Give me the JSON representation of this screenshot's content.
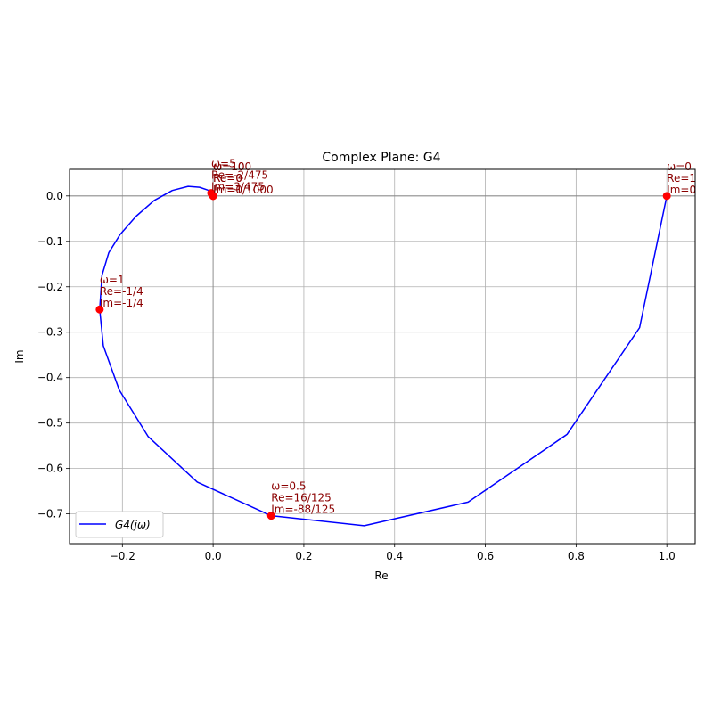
{
  "chart_data": {
    "type": "line",
    "title": "Complex Plane: G4",
    "xlabel": "Re",
    "ylabel": "Im",
    "xlim": [
      -0.3165,
      1.0625
    ],
    "ylim": [
      -0.7655,
      0.0585
    ],
    "xticks": [
      -0.2,
      0.0,
      0.2,
      0.4,
      0.6,
      0.8,
      1.0
    ],
    "xtick_labels": [
      "−0.2",
      "0.0",
      "0.2",
      "0.4",
      "0.6",
      "0.8",
      "1.0"
    ],
    "yticks": [
      0.0,
      -0.1,
      -0.2,
      -0.3,
      -0.4,
      -0.5,
      -0.6,
      -0.7
    ],
    "ytick_labels": [
      "0.0",
      "−0.1",
      "−0.2",
      "−0.3",
      "−0.4",
      "−0.5",
      "−0.6",
      "−0.7"
    ],
    "grid": true,
    "legend_position": "lower-left",
    "series": [
      {
        "name": "G4(jω)",
        "color": "#0000ff",
        "points": [
          [
            1.0,
            0.0
          ],
          [
            0.94,
            -0.29
          ],
          [
            0.78,
            -0.525
          ],
          [
            0.562,
            -0.674
          ],
          [
            0.333,
            -0.726
          ],
          [
            0.128,
            -0.704
          ],
          [
            -0.035,
            -0.63
          ],
          [
            -0.143,
            -0.53
          ],
          [
            -0.207,
            -0.427
          ],
          [
            -0.242,
            -0.33
          ],
          [
            -0.25,
            -0.25
          ],
          [
            -0.245,
            -0.175
          ],
          [
            -0.23,
            -0.125
          ],
          [
            -0.205,
            -0.085
          ],
          [
            -0.17,
            -0.045
          ],
          [
            -0.13,
            -0.01
          ],
          [
            -0.09,
            0.012
          ],
          [
            -0.055,
            0.021
          ],
          [
            -0.03,
            0.019
          ],
          [
            -0.012,
            0.013
          ],
          [
            -0.003,
            0.006
          ],
          [
            0.0,
            0.001
          ]
        ]
      }
    ],
    "markers": [
      {
        "x": 1.0,
        "y": 0.0,
        "lines": [
          "ω=0",
          "Re=1",
          "Im=0"
        ]
      },
      {
        "x": 0.128,
        "y": -0.704,
        "lines": [
          "ω=0.5",
          "Re=16/125",
          "Im=-88/125"
        ]
      },
      {
        "x": -0.25,
        "y": -0.25,
        "lines": [
          "ω=1",
          "Re=-1/4",
          "Im=-1/4"
        ]
      },
      {
        "x": -0.0042,
        "y": 0.0063,
        "lines": [
          "ω=5",
          "Re=-2/475",
          "Im=3/475"
        ]
      },
      {
        "x": 0.0,
        "y": 0.0,
        "lines": [
          "ω=10",
          "Re=0",
          "Im=1/1000"
        ]
      },
      {
        "x": 0.0,
        "y": 0.0,
        "lines": [
          "ω=100",
          "Re=0",
          "Im=0"
        ]
      }
    ],
    "marker_color": "#ff0000",
    "legend_label": "G4(jω)"
  }
}
